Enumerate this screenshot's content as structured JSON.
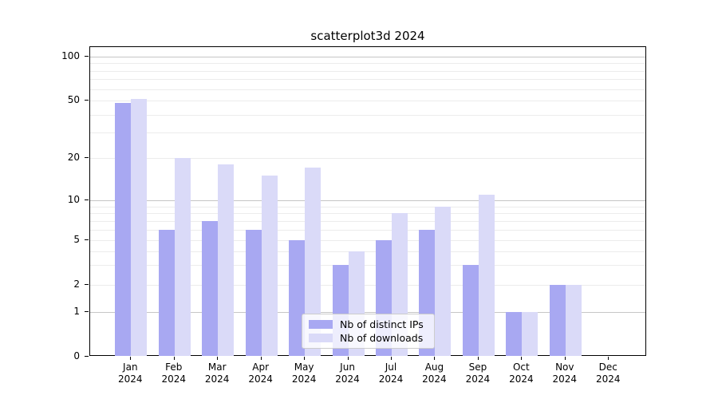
{
  "figure": {
    "background": "#ffffff"
  },
  "chart_data": {
    "type": "bar",
    "title": "scatterplot3d 2024",
    "x_year": "2024",
    "months": [
      "Jan",
      "Feb",
      "Mar",
      "Apr",
      "May",
      "Jun",
      "Jul",
      "Aug",
      "Sep",
      "Oct",
      "Nov",
      "Dec"
    ],
    "categories": [
      "Jan 2024",
      "Feb 2024",
      "Mar 2024",
      "Apr 2024",
      "May 2024",
      "Jun 2024",
      "Jul 2024",
      "Aug 2024",
      "Sep 2024",
      "Oct 2024",
      "Nov 2024",
      "Dec 2024"
    ],
    "series": [
      {
        "name": "Nb of distinct IPs",
        "color": "#a8a8f2",
        "values": [
          48,
          6,
          7,
          6,
          5,
          3,
          5,
          6,
          3,
          1,
          2,
          0
        ]
      },
      {
        "name": "Nb of downloads",
        "color": "#dadaf8",
        "values": [
          51,
          20,
          18,
          15,
          17,
          4,
          8,
          9,
          11,
          1,
          2,
          0
        ]
      }
    ],
    "xlabel": "",
    "ylabel": "",
    "yscale": "symlog",
    "ylim": [
      0,
      120
    ],
    "yticks": [
      0,
      1,
      2,
      5,
      10,
      20,
      50,
      100
    ],
    "major_gridlines": [
      1,
      10,
      100
    ],
    "minor_gridlines": [
      2,
      3,
      4,
      5,
      6,
      7,
      8,
      9,
      20,
      30,
      40,
      50,
      60,
      70,
      80,
      90
    ],
    "grid": true,
    "legend_position": "lower center"
  },
  "colors": {
    "bar_distinct_ips": "#a8a8f2",
    "bar_downloads": "#dadaf8",
    "grid_major": "#c6c6c6",
    "grid_minor": "#ececec",
    "spine": "#000000",
    "legend_border": "#cccccc",
    "text": "#000000"
  }
}
